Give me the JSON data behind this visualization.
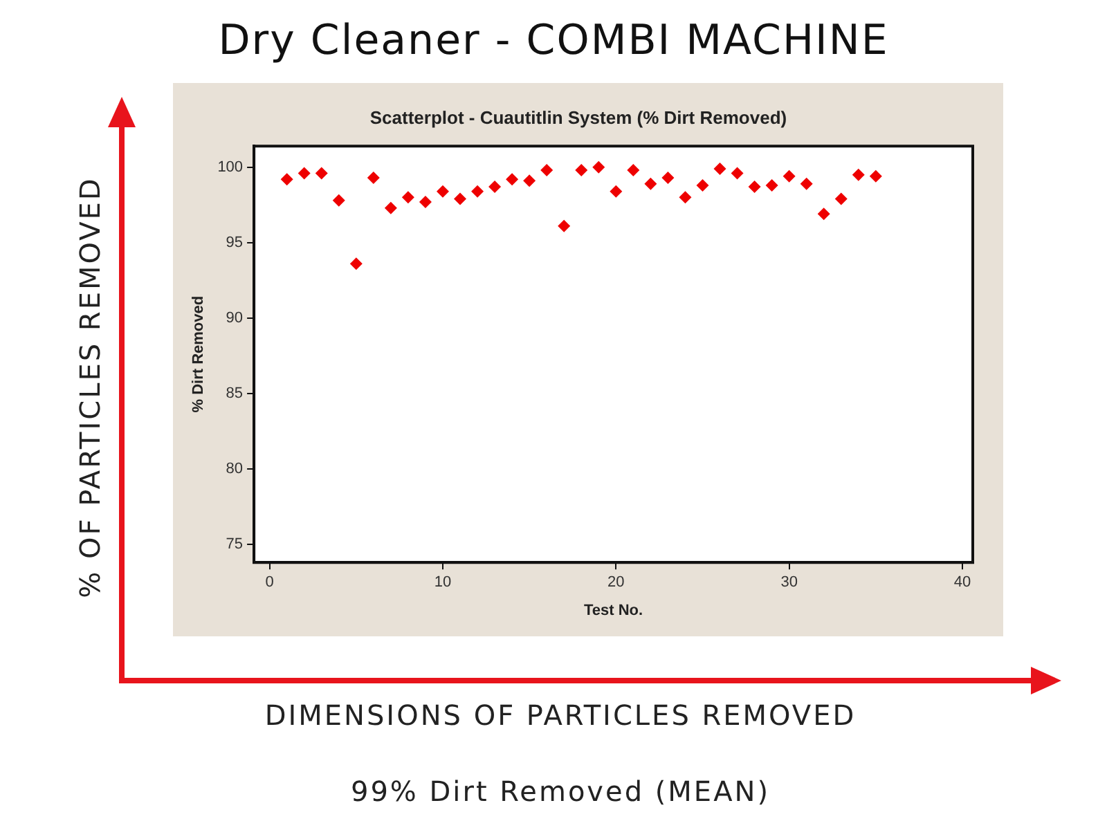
{
  "chart_data": {
    "type": "scatter",
    "title": "Dry Cleaner - COMBI MACHINE",
    "subtitle": "Scatterplot - Cuautitlin System (% Dirt Removed)",
    "xlabel": "Test No.",
    "ylabel": "% Dirt Removed",
    "annotations": [
      "% OF PARTICLES REMOVED",
      "DIMENSIONS OF PARTICLES REMOVED",
      "99% Dirt Removed (MEAN)"
    ],
    "x": [
      1,
      2,
      3,
      4,
      5,
      6,
      7,
      8,
      9,
      10,
      11,
      12,
      13,
      14,
      15,
      16,
      17,
      18,
      19,
      20,
      21,
      22,
      23,
      24,
      25,
      26,
      27,
      28,
      29,
      30,
      31,
      32,
      33,
      34,
      35
    ],
    "series": [
      {
        "color": "#ee0000",
        "values": [
          99.2,
          99.6,
          99.6,
          97.8,
          93.6,
          99.3,
          97.3,
          98.0,
          97.7,
          98.4,
          97.9,
          98.4,
          98.7,
          99.2,
          99.1,
          99.8,
          96.1,
          99.8,
          100,
          98.4,
          99.8,
          98.9,
          99.3,
          98.0,
          98.8,
          99.9,
          99.6,
          98.7,
          98.8,
          99.4,
          98.9,
          96.9,
          97.9,
          99.5,
          99.4
        ]
      }
    ],
    "xlim": [
      -0.9,
      40.6
    ],
    "ylim": [
      73.8,
      101.4
    ],
    "xticks": [
      0,
      10,
      20,
      30,
      40
    ],
    "yticks": [
      75,
      80,
      85,
      90,
      95,
      100
    ],
    "grid": false,
    "legend": false,
    "marker": "diamond"
  }
}
